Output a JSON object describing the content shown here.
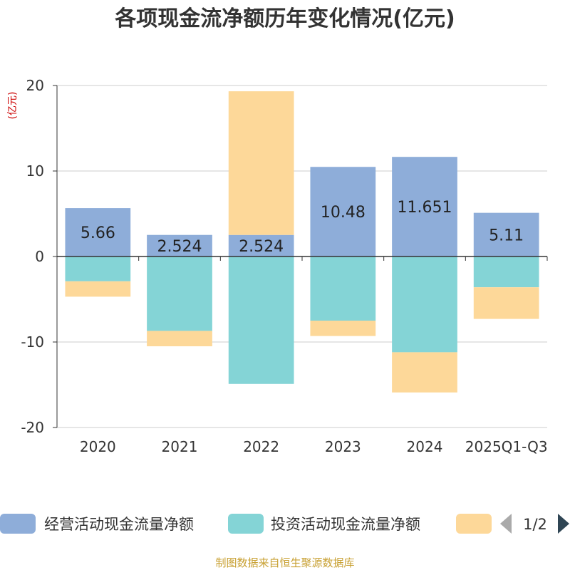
{
  "chart_data": {
    "type": "bar",
    "stacked": true,
    "title": "各项现金流净额历年变化情况(亿元)",
    "ylabel": "(亿元)",
    "ylim": [
      -20,
      20
    ],
    "yticks": [
      20,
      10,
      0,
      -10,
      -20
    ],
    "categories": [
      "2020",
      "2021",
      "2022",
      "2023",
      "2024",
      "2025Q1-Q3"
    ],
    "series": [
      {
        "name": "经营活动现金流量净额",
        "color": "#8eadd9",
        "values": [
          5.66,
          2.524,
          2.524,
          10.48,
          11.651,
          5.11
        ],
        "labels": [
          "5.66",
          "2.524",
          "2.524",
          "10.48",
          "11.651",
          "5.11"
        ]
      },
      {
        "name": "投资活动现金流量净额",
        "color": "#84d4d6",
        "values": [
          -2.9,
          -8.7,
          -14.9,
          -7.5,
          -11.2,
          -3.6
        ]
      },
      {
        "name": "",
        "color": "#fdd899",
        "values": [
          -1.8,
          -1.8,
          16.8,
          -1.8,
          -4.7,
          -3.7
        ]
      }
    ],
    "legend": {
      "page": "1/2",
      "position": "bottom"
    }
  },
  "source": "制图数据来自恒生聚源数据库",
  "colors": {
    "unit": "#cc0000",
    "source": "#c8a032",
    "axis": "#333333",
    "grid": "#cccccc",
    "arrow_inactive": "#aaaaaa",
    "arrow_active": "#2f4554"
  }
}
